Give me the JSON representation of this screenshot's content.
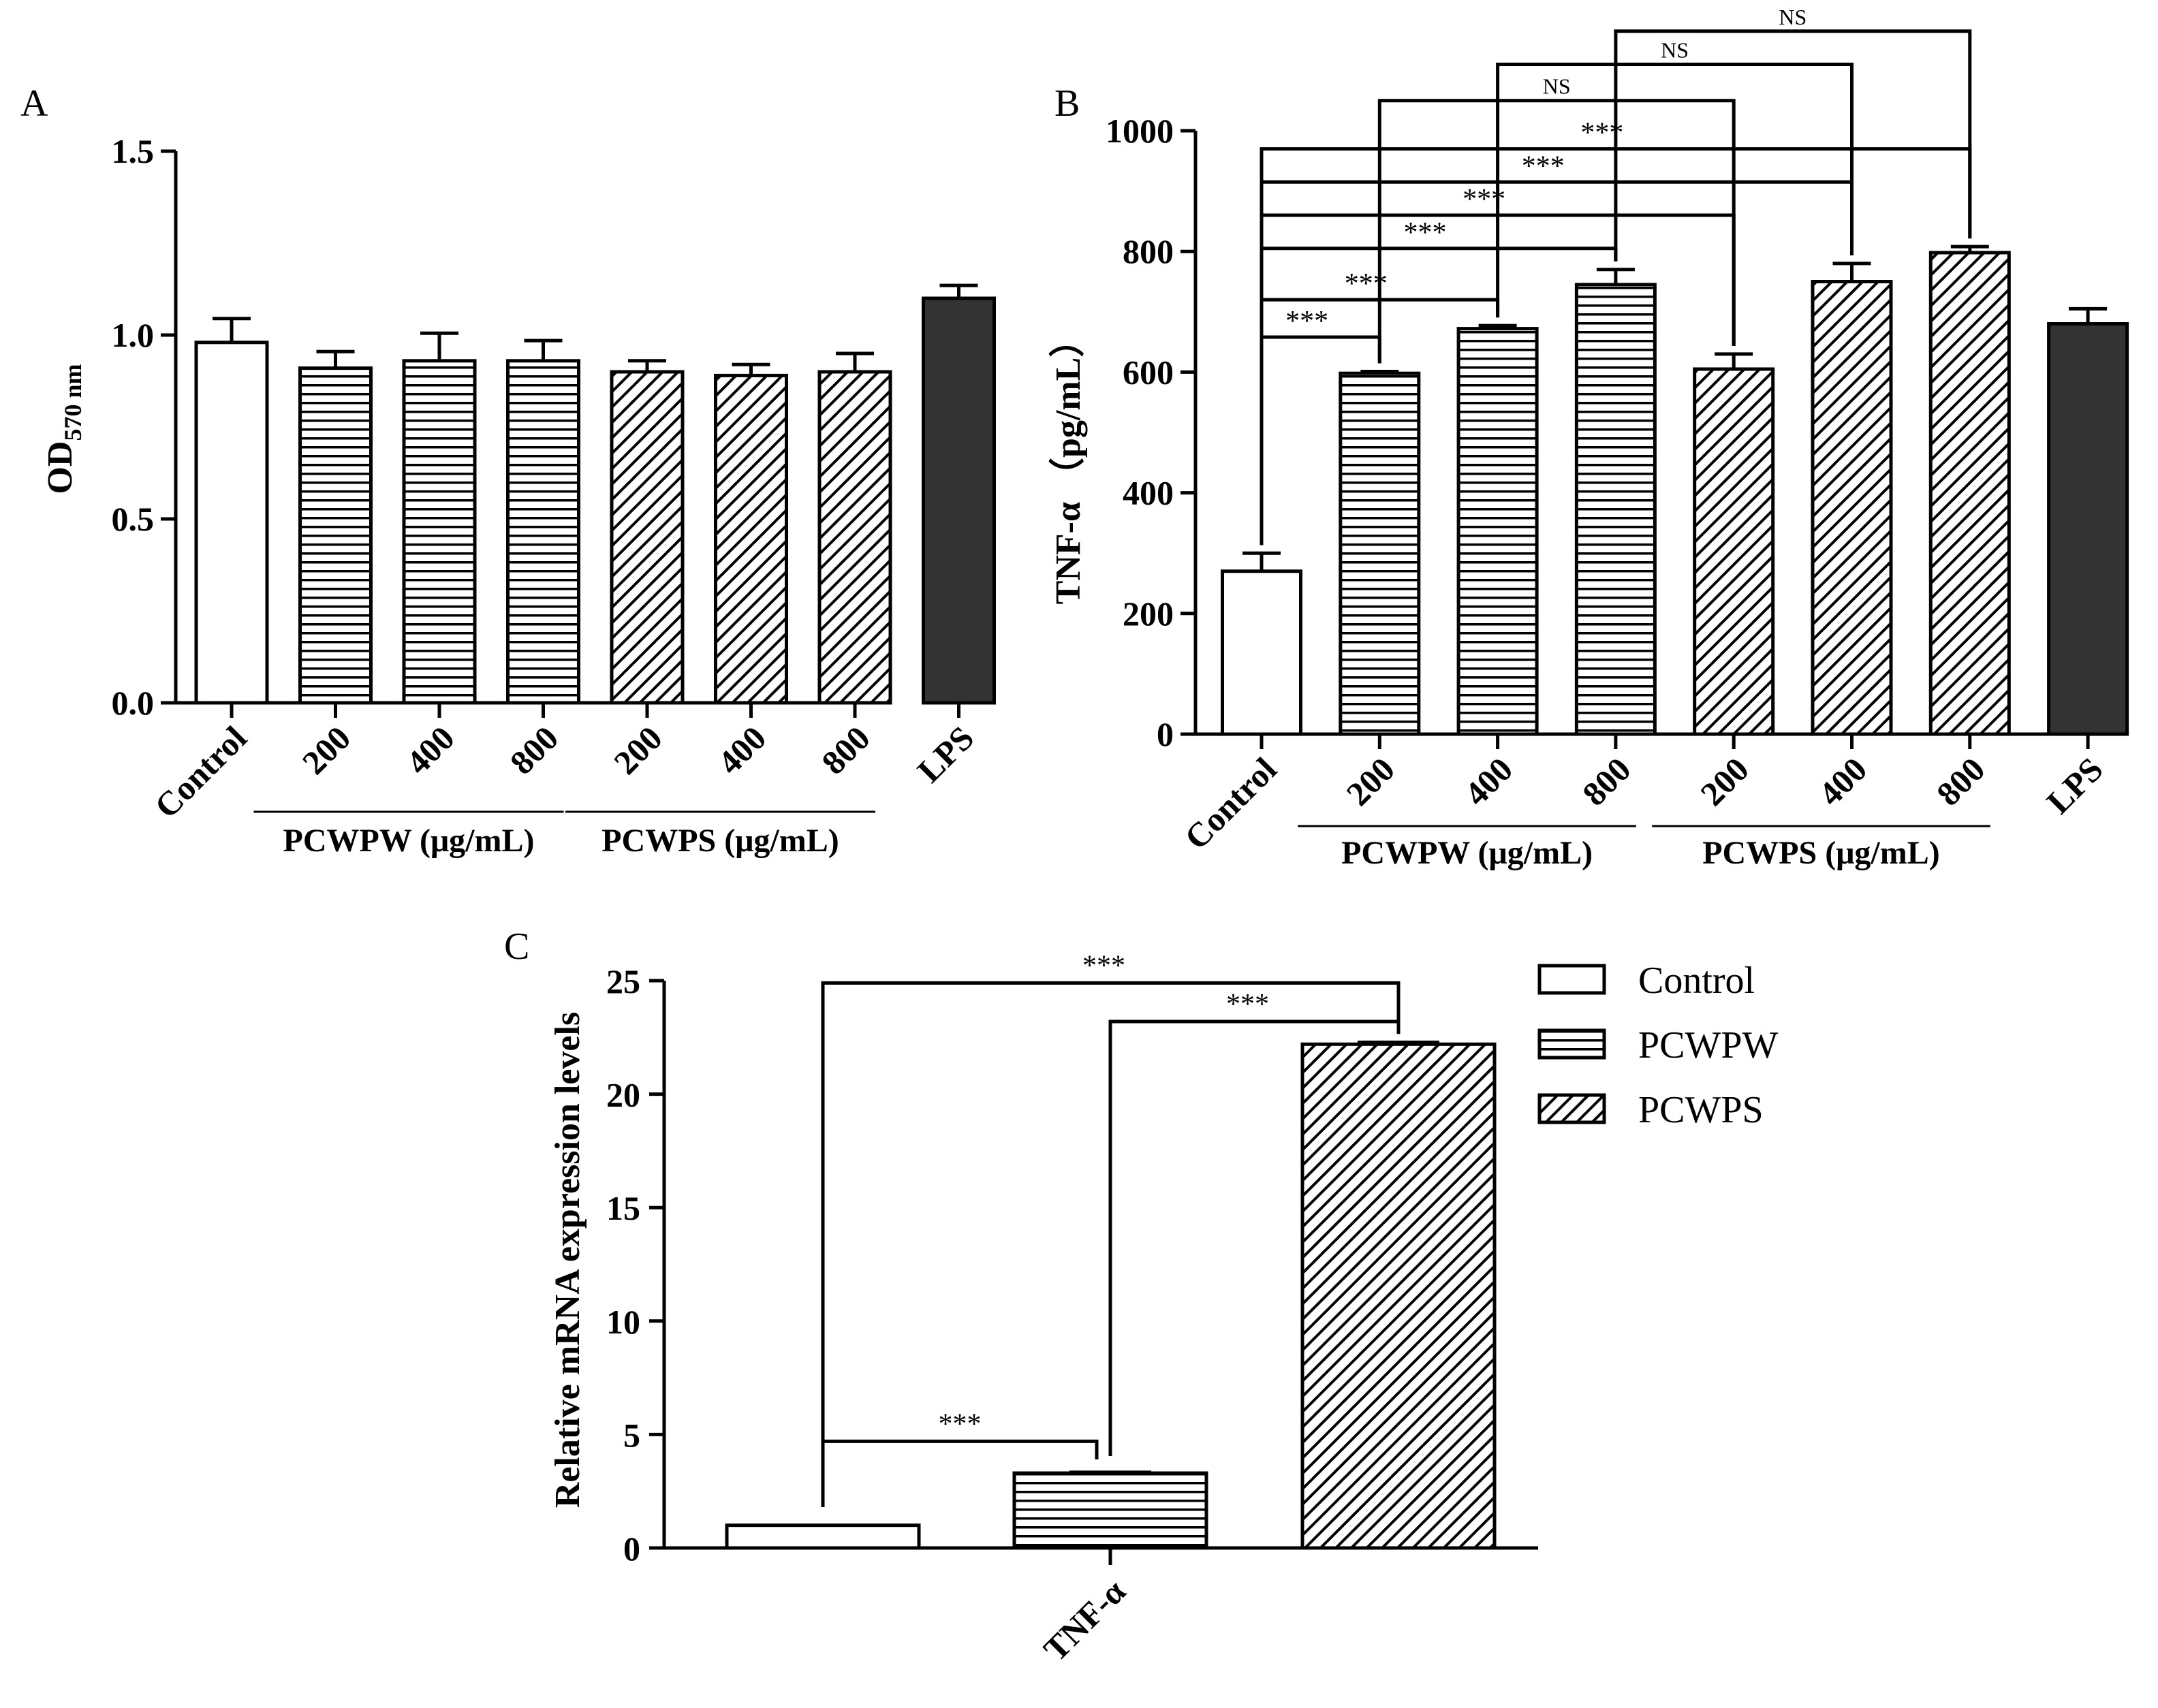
{
  "chart_data": [
    {
      "panel": "A",
      "type": "bar",
      "ylabel_main": "OD",
      "ylabel_sub": "570 nm",
      "ylim": [
        0,
        1.5
      ],
      "yticks": [
        "0.0",
        "0.5",
        "1.0",
        "1.5"
      ],
      "ytick_values": [
        0,
        0.5,
        1.0,
        1.5
      ],
      "categories": [
        "Control",
        "200",
        "400",
        "800",
        "200",
        "400",
        "800",
        "LPS"
      ],
      "values": [
        0.98,
        0.91,
        0.93,
        0.93,
        0.9,
        0.89,
        0.9,
        1.1
      ],
      "errors": [
        0.065,
        0.045,
        0.075,
        0.055,
        0.03,
        0.03,
        0.05,
        0.035
      ],
      "fills": [
        "white",
        "hlines",
        "hlines",
        "hlines",
        "diag",
        "diag",
        "diag",
        "dark"
      ],
      "groups": [
        {
          "label": "PCWPW (μg/mL)",
          "start": 1,
          "end": 3
        },
        {
          "label": "PCWPS (μg/mL)",
          "start": 4,
          "end": 6
        }
      ]
    },
    {
      "panel": "B",
      "type": "bar",
      "ylabel": "TNF-α （pg/mL）",
      "ylim": [
        0,
        1000
      ],
      "yticks": [
        "0",
        "200",
        "400",
        "600",
        "800",
        "1000"
      ],
      "ytick_values": [
        0,
        200,
        400,
        600,
        800,
        1000
      ],
      "categories": [
        "Control",
        "200",
        "400",
        "800",
        "200",
        "400",
        "800",
        "LPS"
      ],
      "values": [
        270,
        598,
        672,
        745,
        605,
        750,
        798,
        680
      ],
      "errors": [
        30,
        3,
        5,
        25,
        25,
        30,
        10,
        25
      ],
      "fills": [
        "white",
        "hlines",
        "hlines",
        "hlines",
        "diag",
        "diag",
        "diag",
        "dark"
      ],
      "groups": [
        {
          "label": "PCWPW (μg/mL)",
          "start": 1,
          "end": 3
        },
        {
          "label": "PCWPS (μg/mL)",
          "start": 4,
          "end": 6
        }
      ],
      "comparisons": [
        {
          "from": 0,
          "to": 1,
          "label": "***",
          "level": 658
        },
        {
          "from": 0,
          "to": 2,
          "label": "***",
          "level": 720
        },
        {
          "from": 0,
          "to": 3,
          "label": "***",
          "level": 805
        },
        {
          "from": 0,
          "to": 4,
          "label": "***",
          "level": 860
        },
        {
          "from": 0,
          "to": 5,
          "label": "***",
          "level": 915
        },
        {
          "from": 0,
          "to": 6,
          "label": "***",
          "level": 970
        },
        {
          "from": 1,
          "to": 4,
          "label": "NS",
          "level": 1050
        },
        {
          "from": 2,
          "to": 5,
          "label": "NS",
          "level": 1110
        },
        {
          "from": 3,
          "to": 6,
          "label": "NS",
          "level": 1165
        }
      ]
    },
    {
      "panel": "C",
      "type": "bar",
      "ylabel": "Relative mRNA  expression levels",
      "ylim": [
        0,
        25
      ],
      "yticks": [
        "0",
        "5",
        "10",
        "15",
        "20",
        "25"
      ],
      "ytick_values": [
        0,
        5,
        10,
        15,
        20,
        25
      ],
      "xlabel": "TNF-α",
      "series": [
        {
          "name": "Control",
          "values": [
            1.0
          ],
          "fill": "white"
        },
        {
          "name": "PCWPW",
          "values": [
            3.3
          ],
          "fill": "hlines"
        },
        {
          "name": "PCWPS",
          "values": [
            22.2
          ],
          "fill": "diag"
        }
      ],
      "comparisons": [
        {
          "from": 0,
          "to": 1,
          "label": "***",
          "level": 4.7
        },
        {
          "from": 1,
          "to": 2,
          "label": "***",
          "level": 23.2
        },
        {
          "from": 0,
          "to": 2,
          "label": "***",
          "level": 24.9
        }
      ]
    }
  ]
}
